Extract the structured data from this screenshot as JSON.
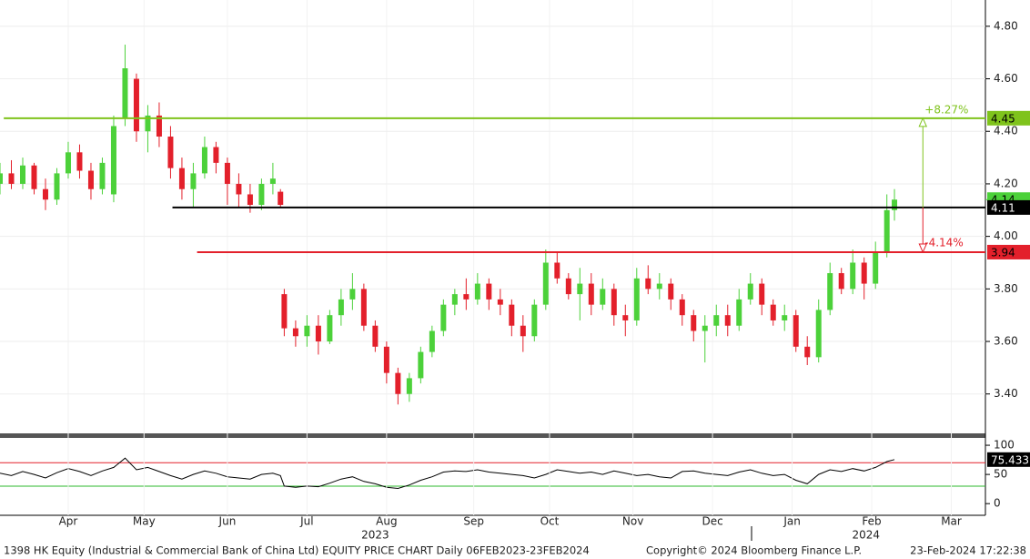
{
  "chart_data": [
    {
      "type": "candlestick",
      "up_color": "#4cd13a",
      "down_color": "#e3202b",
      "xlim": [
        0,
        260
      ],
      "ylim": [
        3.25,
        4.9
      ],
      "yticks": [
        {
          "value": 3.4,
          "label": "3.40"
        },
        {
          "value": 3.6,
          "label": "3.60"
        },
        {
          "value": 3.8,
          "label": "3.80"
        },
        {
          "value": 4.0,
          "label": "4.00"
        },
        {
          "value": 4.2,
          "label": "4.20"
        },
        {
          "value": 4.4,
          "label": "4.40"
        },
        {
          "value": 4.6,
          "label": "4.60"
        },
        {
          "value": 4.8,
          "label": "4.80"
        }
      ],
      "grid": true,
      "x": [
        0,
        3,
        6,
        9,
        12,
        15,
        18,
        21,
        24,
        27,
        30,
        33,
        36,
        39,
        42,
        45,
        48,
        51,
        54,
        57,
        60,
        63,
        66,
        69,
        72,
        74,
        75,
        78,
        81,
        84,
        87,
        90,
        93,
        96,
        99,
        102,
        105,
        108,
        111,
        114,
        117,
        120,
        123,
        126,
        129,
        132,
        135,
        138,
        141,
        144,
        147,
        150,
        153,
        156,
        159,
        162,
        165,
        168,
        171,
        174,
        177,
        180,
        183,
        186,
        189,
        192,
        195,
        198,
        201,
        204,
        207,
        210,
        213,
        216,
        219,
        222,
        225,
        228,
        231,
        234,
        236
      ],
      "ohlc": [
        [
          4.2,
          4.28,
          4.16,
          4.24
        ],
        [
          4.24,
          4.29,
          4.18,
          4.2
        ],
        [
          4.2,
          4.3,
          4.18,
          4.27
        ],
        [
          4.27,
          4.28,
          4.16,
          4.18
        ],
        [
          4.18,
          4.22,
          4.1,
          4.14
        ],
        [
          4.14,
          4.26,
          4.12,
          4.24
        ],
        [
          4.24,
          4.36,
          4.22,
          4.32
        ],
        [
          4.32,
          4.35,
          4.22,
          4.25
        ],
        [
          4.25,
          4.28,
          4.14,
          4.18
        ],
        [
          4.18,
          4.3,
          4.16,
          4.28
        ],
        [
          4.16,
          4.46,
          4.13,
          4.42
        ],
        [
          4.45,
          4.73,
          4.42,
          4.64
        ],
        [
          4.6,
          4.62,
          4.36,
          4.4
        ],
        [
          4.4,
          4.5,
          4.32,
          4.46
        ],
        [
          4.46,
          4.51,
          4.34,
          4.38
        ],
        [
          4.38,
          4.42,
          4.22,
          4.26
        ],
        [
          4.26,
          4.3,
          4.14,
          4.18
        ],
        [
          4.18,
          4.28,
          4.11,
          4.24
        ],
        [
          4.24,
          4.38,
          4.22,
          4.34
        ],
        [
          4.34,
          4.36,
          4.24,
          4.28
        ],
        [
          4.28,
          4.3,
          4.12,
          4.2
        ],
        [
          4.2,
          4.24,
          4.11,
          4.16
        ],
        [
          4.16,
          4.2,
          4.09,
          4.12
        ],
        [
          4.12,
          4.22,
          4.1,
          4.2
        ],
        [
          4.2,
          4.28,
          4.16,
          4.22
        ],
        [
          4.17,
          4.18,
          4.11,
          4.12
        ],
        [
          3.78,
          3.8,
          3.62,
          3.65
        ],
        [
          3.65,
          3.68,
          3.58,
          3.62
        ],
        [
          3.62,
          3.7,
          3.58,
          3.66
        ],
        [
          3.66,
          3.7,
          3.55,
          3.6
        ],
        [
          3.6,
          3.72,
          3.59,
          3.7
        ],
        [
          3.7,
          3.8,
          3.66,
          3.76
        ],
        [
          3.76,
          3.86,
          3.72,
          3.8
        ],
        [
          3.8,
          3.82,
          3.64,
          3.66
        ],
        [
          3.66,
          3.68,
          3.56,
          3.58
        ],
        [
          3.58,
          3.6,
          3.44,
          3.48
        ],
        [
          3.48,
          3.5,
          3.36,
          3.4
        ],
        [
          3.4,
          3.48,
          3.37,
          3.46
        ],
        [
          3.46,
          3.58,
          3.44,
          3.56
        ],
        [
          3.56,
          3.66,
          3.54,
          3.64
        ],
        [
          3.64,
          3.76,
          3.62,
          3.74
        ],
        [
          3.74,
          3.8,
          3.7,
          3.78
        ],
        [
          3.78,
          3.84,
          3.72,
          3.76
        ],
        [
          3.76,
          3.86,
          3.74,
          3.82
        ],
        [
          3.82,
          3.84,
          3.72,
          3.76
        ],
        [
          3.76,
          3.8,
          3.7,
          3.74
        ],
        [
          3.74,
          3.76,
          3.62,
          3.66
        ],
        [
          3.66,
          3.7,
          3.56,
          3.62
        ],
        [
          3.62,
          3.76,
          3.6,
          3.74
        ],
        [
          3.74,
          3.95,
          3.72,
          3.9
        ],
        [
          3.9,
          3.94,
          3.82,
          3.84
        ],
        [
          3.84,
          3.86,
          3.76,
          3.78
        ],
        [
          3.78,
          3.88,
          3.68,
          3.82
        ],
        [
          3.82,
          3.86,
          3.7,
          3.74
        ],
        [
          3.74,
          3.84,
          3.72,
          3.8
        ],
        [
          3.8,
          3.82,
          3.66,
          3.7
        ],
        [
          3.7,
          3.74,
          3.62,
          3.68
        ],
        [
          3.68,
          3.88,
          3.66,
          3.84
        ],
        [
          3.84,
          3.89,
          3.78,
          3.8
        ],
        [
          3.8,
          3.86,
          3.76,
          3.82
        ],
        [
          3.82,
          3.84,
          3.72,
          3.76
        ],
        [
          3.76,
          3.78,
          3.66,
          3.7
        ],
        [
          3.7,
          3.72,
          3.6,
          3.64
        ],
        [
          3.64,
          3.7,
          3.52,
          3.66
        ],
        [
          3.66,
          3.74,
          3.62,
          3.7
        ],
        [
          3.7,
          3.74,
          3.62,
          3.66
        ],
        [
          3.66,
          3.8,
          3.64,
          3.76
        ],
        [
          3.76,
          3.86,
          3.74,
          3.82
        ],
        [
          3.82,
          3.84,
          3.7,
          3.74
        ],
        [
          3.74,
          3.76,
          3.66,
          3.68
        ],
        [
          3.68,
          3.74,
          3.64,
          3.7
        ],
        [
          3.7,
          3.72,
          3.56,
          3.58
        ],
        [
          3.58,
          3.62,
          3.51,
          3.54
        ],
        [
          3.54,
          3.76,
          3.52,
          3.72
        ],
        [
          3.72,
          3.9,
          3.7,
          3.86
        ],
        [
          3.86,
          3.88,
          3.78,
          3.8
        ],
        [
          3.8,
          3.95,
          3.78,
          3.9
        ],
        [
          3.9,
          3.92,
          3.76,
          3.82
        ],
        [
          3.82,
          3.98,
          3.8,
          3.94
        ],
        [
          3.94,
          4.16,
          3.92,
          4.1
        ],
        [
          4.1,
          4.18,
          4.06,
          4.14
        ]
      ],
      "levels": [
        {
          "value": 4.45,
          "label": "4.45",
          "color": "#7fc31c",
          "x_start": 1
        },
        {
          "value": 4.11,
          "label": "4.11",
          "color": "#000000",
          "x_start": 45.5
        },
        {
          "value": 3.94,
          "label": "3.94",
          "color": "#e3202b",
          "x_start": 52
        }
      ],
      "last_price": {
        "value": 4.14,
        "label": "4.14",
        "color": "#4cd13a"
      },
      "annotations": [
        {
          "text": "+8.27%",
          "from": 4.11,
          "to": 4.45,
          "x": 243.5,
          "color": "#7fc31c"
        },
        {
          "text": "-4.14%",
          "from": 4.11,
          "to": 3.94,
          "x": 243.5,
          "color": "#e3202b"
        }
      ]
    },
    {
      "type": "line",
      "color": "#000000",
      "xlim": [
        0,
        260
      ],
      "ylim": [
        -20,
        111
      ],
      "yticks": [
        0,
        50,
        100
      ],
      "bands": [
        {
          "value": 70,
          "color": "#e3202b"
        },
        {
          "value": 30,
          "color": "#2db82d"
        }
      ],
      "last_label": {
        "value": 75.433,
        "label": "75.433"
      },
      "xticks": [
        {
          "value": 18,
          "label": "Apr"
        },
        {
          "value": 38,
          "label": "May"
        },
        {
          "value": 60,
          "label": "Jun"
        },
        {
          "value": 81,
          "label": "Jul"
        },
        {
          "value": 102,
          "label": "Aug"
        },
        {
          "value": 125,
          "label": "Sep"
        },
        {
          "value": 145,
          "label": "Oct"
        },
        {
          "value": 167,
          "label": "Nov"
        },
        {
          "value": 188,
          "label": "Dec"
        },
        {
          "value": 209,
          "label": "Jan"
        },
        {
          "value": 230,
          "label": "Feb"
        },
        {
          "value": 251,
          "label": "Mar"
        }
      ],
      "year_ticks": [
        {
          "value": 99,
          "label": "2023"
        },
        {
          "value": 228.5,
          "label": "2024"
        }
      ],
      "x": [
        0,
        3,
        6,
        9,
        12,
        15,
        18,
        21,
        24,
        27,
        30,
        33,
        36,
        39,
        42,
        45,
        48,
        51,
        54,
        57,
        60,
        63,
        66,
        69,
        72,
        74,
        75,
        78,
        81,
        84,
        87,
        90,
        93,
        96,
        99,
        102,
        105,
        108,
        111,
        114,
        117,
        120,
        123,
        126,
        129,
        132,
        135,
        138,
        141,
        144,
        147,
        150,
        153,
        156,
        159,
        162,
        165,
        168,
        171,
        174,
        177,
        180,
        183,
        186,
        189,
        192,
        195,
        198,
        201,
        204,
        207,
        210,
        213,
        216,
        219,
        222,
        225,
        228,
        231,
        234,
        236
      ],
      "values": [
        52,
        48,
        55,
        50,
        44,
        53,
        60,
        55,
        48,
        56,
        62,
        78,
        58,
        62,
        55,
        48,
        42,
        50,
        56,
        52,
        46,
        44,
        42,
        50,
        52,
        48,
        30,
        28,
        30,
        29,
        35,
        42,
        46,
        38,
        34,
        28,
        26,
        32,
        40,
        46,
        54,
        56,
        55,
        58,
        54,
        52,
        50,
        48,
        44,
        50,
        58,
        55,
        52,
        54,
        50,
        56,
        52,
        48,
        50,
        46,
        44,
        55,
        56,
        52,
        50,
        48,
        54,
        58,
        52,
        48,
        50,
        40,
        34,
        50,
        58,
        55,
        60,
        56,
        62,
        72,
        75.433
      ]
    }
  ],
  "footer": {
    "left": "1398 HK Equity (Industrial & Commercial Bank of China Ltd) EQUITY PRICE CHART  Daily 06FEB2023-23FEB2024",
    "center": "Copyright© 2024 Bloomberg Finance L.P.",
    "right": "23-Feb-2024 17:22:38"
  }
}
